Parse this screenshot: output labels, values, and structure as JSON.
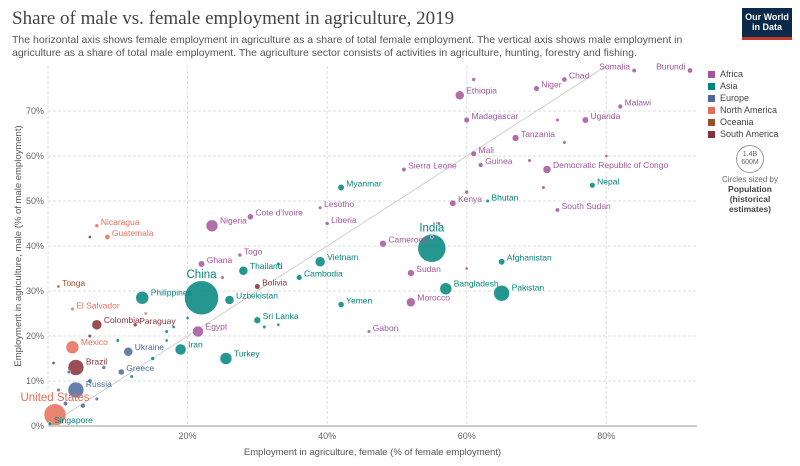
{
  "header": {
    "title": "Share of male vs. female employment in agriculture, 2019",
    "subtitle": "The horizontal axis shows female employment in agriculture as a share of total female employment. The vertical axis shows male employment in agriculture as a share of total male employment. The agriculture sector consists of activities in agriculture, hunting, forestry and fishing.",
    "logo_line1": "Our World",
    "logo_line2": "in Data"
  },
  "legend": {
    "items": [
      {
        "label": "Africa",
        "color": "#a2559c"
      },
      {
        "label": "Asia",
        "color": "#00847e"
      },
      {
        "label": "Europe",
        "color": "#4c6a9c"
      },
      {
        "label": "North America",
        "color": "#e56e5a"
      },
      {
        "label": "Oceania",
        "color": "#9a5129"
      },
      {
        "label": "South America",
        "color": "#883039"
      }
    ],
    "size_value": "1.4B",
    "size_value2": "600M",
    "size_note": "Circles sized by",
    "size_title": "Population (historical estimates)"
  },
  "chart_data": {
    "type": "scatter",
    "xlabel": "Employment in agriculture, female (% of female employment)",
    "ylabel": "Employment in agriculture, male (% of male employment)",
    "xlim": [
      0,
      93
    ],
    "ylim": [
      0,
      80
    ],
    "x_ticks": [
      "0%",
      "20%",
      "40%",
      "60%",
      "80%"
    ],
    "y_ticks": [
      "0%",
      "10%",
      "20%",
      "30%",
      "40%",
      "50%",
      "60%",
      "70%"
    ],
    "x_tick_values": [
      0,
      20,
      40,
      60,
      80
    ],
    "y_tick_values": [
      0,
      10,
      20,
      30,
      40,
      50,
      60,
      70
    ],
    "points": [
      {
        "label": "Somalia",
        "x": 84,
        "y": 79,
        "r": 2.2,
        "region": "Africa"
      },
      {
        "label": "Burundi",
        "x": 92,
        "y": 79,
        "r": 2.6,
        "region": "Africa"
      },
      {
        "label": "Chad",
        "x": 74,
        "y": 77,
        "r": 2.6,
        "region": "Africa"
      },
      {
        "label": "Niger",
        "x": 70,
        "y": 75,
        "r": 2.8,
        "region": "Africa"
      },
      {
        "label": "Ethiopia",
        "x": 59,
        "y": 73.5,
        "r": 4.5,
        "region": "Africa"
      },
      {
        "label": "Malawi",
        "x": 82,
        "y": 71,
        "r": 2.4,
        "region": "Africa"
      },
      {
        "label": "Madagascar",
        "x": 60,
        "y": 68,
        "r": 2.8,
        "region": "Africa"
      },
      {
        "label": "Uganda",
        "x": 77,
        "y": 68,
        "r": 3.2,
        "region": "Africa"
      },
      {
        "label": "Tanzania",
        "x": 67,
        "y": 64,
        "r": 3.4,
        "region": "Africa"
      },
      {
        "label": "Mali",
        "x": 61,
        "y": 60.5,
        "r": 2.8,
        "region": "Africa"
      },
      {
        "label": "Guinea",
        "x": 62,
        "y": 58,
        "r": 2.4,
        "region": "Africa"
      },
      {
        "label": "Democratic Republic of Congo",
        "x": 71.5,
        "y": 57,
        "r": 4.0,
        "region": "Africa"
      },
      {
        "label": "Sierra Leone",
        "x": 51,
        "y": 57,
        "r": 2.2,
        "region": "Africa"
      },
      {
        "label": "Nepal",
        "x": 78,
        "y": 53.5,
        "r": 2.8,
        "region": "Asia"
      },
      {
        "label": "Myanmar",
        "x": 42,
        "y": 53,
        "r": 3.2,
        "region": "Asia"
      },
      {
        "label": "Kenya",
        "x": 58,
        "y": 49.5,
        "r": 3.2,
        "region": "Africa"
      },
      {
        "label": "Bhutan",
        "x": 63,
        "y": 50,
        "r": 1.8,
        "region": "Asia"
      },
      {
        "label": "South Sudan",
        "x": 73,
        "y": 48,
        "r": 2.2,
        "region": "Africa"
      },
      {
        "label": "Lesotho",
        "x": 39,
        "y": 48.5,
        "r": 1.8,
        "region": "Africa"
      },
      {
        "label": "Cote d'Ivoire",
        "x": 29,
        "y": 46.5,
        "r": 3.0,
        "region": "Africa"
      },
      {
        "label": "Liberia",
        "x": 40,
        "y": 45,
        "r": 2.0,
        "region": "Africa"
      },
      {
        "label": "Nigeria",
        "x": 23.5,
        "y": 44.5,
        "r": 6.0,
        "region": "Africa"
      },
      {
        "label": "Nicaragua",
        "x": 7,
        "y": 44.5,
        "r": 2.0,
        "region": "North America"
      },
      {
        "label": "Guatemala",
        "x": 8.5,
        "y": 42,
        "r": 2.6,
        "region": "North America"
      },
      {
        "label": "Cameroon",
        "x": 48,
        "y": 40.5,
        "r": 3.4,
        "region": "Africa"
      },
      {
        "label": "India",
        "x": 55,
        "y": 39.5,
        "r": 14.0,
        "region": "Asia"
      },
      {
        "label": "Afghanistan",
        "x": 65,
        "y": 36.5,
        "r": 3.2,
        "region": "Asia"
      },
      {
        "label": "Togo",
        "x": 27.5,
        "y": 38,
        "r": 2.0,
        "region": "Africa"
      },
      {
        "label": "Ghana",
        "x": 22,
        "y": 36,
        "r": 3.2,
        "region": "Africa"
      },
      {
        "label": "Vietnam",
        "x": 39,
        "y": 36.5,
        "r": 5.0,
        "region": "Asia"
      },
      {
        "label": "Thailand",
        "x": 28,
        "y": 34.5,
        "r": 4.5,
        "region": "Asia"
      },
      {
        "label": "Sudan",
        "x": 52,
        "y": 34,
        "r": 3.4,
        "region": "Africa"
      },
      {
        "label": "Cambodia",
        "x": 36,
        "y": 33,
        "r": 2.8,
        "region": "Asia"
      },
      {
        "label": "Tonga",
        "x": 1.5,
        "y": 31,
        "r": 1.6,
        "region": "Oceania"
      },
      {
        "label": "Bolivia",
        "x": 30,
        "y": 31,
        "r": 2.8,
        "region": "South America"
      },
      {
        "label": "Bangladesh",
        "x": 57,
        "y": 30.5,
        "r": 6.0,
        "region": "Asia"
      },
      {
        "label": "Pakistan",
        "x": 65,
        "y": 29.5,
        "r": 8.0,
        "region": "Asia"
      },
      {
        "label": "China",
        "x": 22,
        "y": 28.5,
        "r": 17.0,
        "region": "Asia"
      },
      {
        "label": "Philippines",
        "x": 13.5,
        "y": 28.5,
        "r": 6.5,
        "region": "Asia"
      },
      {
        "label": "Uzbekistan",
        "x": 26,
        "y": 28,
        "r": 4.5,
        "region": "Asia"
      },
      {
        "label": "Morocco",
        "x": 52,
        "y": 27.5,
        "r": 4.5,
        "region": "Africa"
      },
      {
        "label": "Yemen",
        "x": 42,
        "y": 27,
        "r": 3.0,
        "region": "Asia"
      },
      {
        "label": "El Salvador",
        "x": 3.5,
        "y": 26,
        "r": 1.8,
        "region": "North America"
      },
      {
        "label": "Sri Lanka",
        "x": 30,
        "y": 23.5,
        "r": 3.4,
        "region": "Asia"
      },
      {
        "label": "Paraguay",
        "x": 12.5,
        "y": 22.5,
        "r": 2.0,
        "region": "South America"
      },
      {
        "label": "Colombia",
        "x": 7,
        "y": 22.5,
        "r": 5.0,
        "region": "South America"
      },
      {
        "label": "Gabon",
        "x": 46,
        "y": 21,
        "r": 1.8,
        "region": "Africa"
      },
      {
        "label": "Egypt",
        "x": 21.5,
        "y": 21,
        "r": 5.5,
        "region": "Africa"
      },
      {
        "label": "Iran",
        "x": 19,
        "y": 17,
        "r": 5.5,
        "region": "Asia"
      },
      {
        "label": "Mexico",
        "x": 3.5,
        "y": 17.5,
        "r": 6.5,
        "region": "North America"
      },
      {
        "label": "Ukraine",
        "x": 11.5,
        "y": 16.5,
        "r": 4.5,
        "region": "Europe"
      },
      {
        "label": "Turkey",
        "x": 25.5,
        "y": 15,
        "r": 6.0,
        "region": "Asia"
      },
      {
        "label": "Brazil",
        "x": 4,
        "y": 13,
        "r": 8.0,
        "region": "South America"
      },
      {
        "label": "Greece",
        "x": 10.5,
        "y": 12,
        "r": 3.0,
        "region": "Europe"
      },
      {
        "label": "Russia",
        "x": 4,
        "y": 8,
        "r": 8.0,
        "region": "Europe"
      },
      {
        "label": "United States",
        "x": 1,
        "y": 2.5,
        "r": 11.0,
        "region": "North America"
      },
      {
        "label": "Singapore",
        "x": 0.3,
        "y": 0.5,
        "r": 2.0,
        "region": "Asia"
      },
      {
        "label": "",
        "x": 61,
        "y": 77,
        "r": 2.0,
        "region": "Africa"
      },
      {
        "label": "",
        "x": 73,
        "y": 68,
        "r": 1.8,
        "region": "Africa"
      },
      {
        "label": "",
        "x": 74,
        "y": 63,
        "r": 1.8,
        "region": "Africa"
      },
      {
        "label": "",
        "x": 69,
        "y": 59,
        "r": 1.8,
        "region": "Africa"
      },
      {
        "label": "",
        "x": 80,
        "y": 60,
        "r": 1.6,
        "region": "Africa"
      },
      {
        "label": "",
        "x": 60,
        "y": 52,
        "r": 2.0,
        "region": "Africa"
      },
      {
        "label": "",
        "x": 71,
        "y": 53,
        "r": 1.8,
        "region": "Africa"
      },
      {
        "label": "",
        "x": 56,
        "y": 45,
        "r": 1.8,
        "region": "Africa"
      },
      {
        "label": "",
        "x": 60,
        "y": 35,
        "r": 1.6,
        "region": "Africa"
      },
      {
        "label": "",
        "x": 55,
        "y": 42,
        "r": 1.6,
        "region": "Africa"
      },
      {
        "label": "",
        "x": 33,
        "y": 36,
        "r": 1.8,
        "region": "Asia"
      },
      {
        "label": "",
        "x": 25,
        "y": 33,
        "r": 1.8,
        "region": "Africa"
      },
      {
        "label": "",
        "x": 31,
        "y": 22,
        "r": 1.8,
        "region": "Asia"
      },
      {
        "label": "",
        "x": 33,
        "y": 22.5,
        "r": 1.6,
        "region": "Asia"
      },
      {
        "label": "",
        "x": 6,
        "y": 42,
        "r": 1.6,
        "region": "South America"
      },
      {
        "label": "",
        "x": 17,
        "y": 21,
        "r": 1.8,
        "region": "Asia"
      },
      {
        "label": "",
        "x": 15,
        "y": 15,
        "r": 2.0,
        "region": "Asia"
      },
      {
        "label": "",
        "x": 10,
        "y": 19,
        "r": 1.8,
        "region": "Asia"
      },
      {
        "label": "",
        "x": 8,
        "y": 13,
        "r": 2.0,
        "region": "Europe"
      },
      {
        "label": "",
        "x": 6,
        "y": 10,
        "r": 2.2,
        "region": "Europe"
      },
      {
        "label": "",
        "x": 3,
        "y": 12,
        "r": 1.8,
        "region": "Europe"
      },
      {
        "label": "",
        "x": 5,
        "y": 4.5,
        "r": 2.4,
        "region": "Europe"
      },
      {
        "label": "",
        "x": 2.5,
        "y": 5,
        "r": 2.2,
        "region": "Europe"
      },
      {
        "label": "",
        "x": 7,
        "y": 6,
        "r": 1.8,
        "region": "Europe"
      },
      {
        "label": "",
        "x": 1.5,
        "y": 8,
        "r": 1.8,
        "region": "Europe"
      },
      {
        "label": "",
        "x": 0.8,
        "y": 14,
        "r": 1.6,
        "region": "South America"
      },
      {
        "label": "",
        "x": 6,
        "y": 20,
        "r": 1.8,
        "region": "South America"
      },
      {
        "label": "",
        "x": 14,
        "y": 25,
        "r": 1.6,
        "region": "North America"
      },
      {
        "label": "",
        "x": 20,
        "y": 24,
        "r": 1.6,
        "region": "Asia"
      },
      {
        "label": "",
        "x": 18,
        "y": 22,
        "r": 1.6,
        "region": "Asia"
      },
      {
        "label": "",
        "x": 17,
        "y": 19,
        "r": 1.6,
        "region": "Asia"
      },
      {
        "label": "",
        "x": 12,
        "y": 11,
        "r": 1.8,
        "region": "Asia"
      }
    ]
  }
}
